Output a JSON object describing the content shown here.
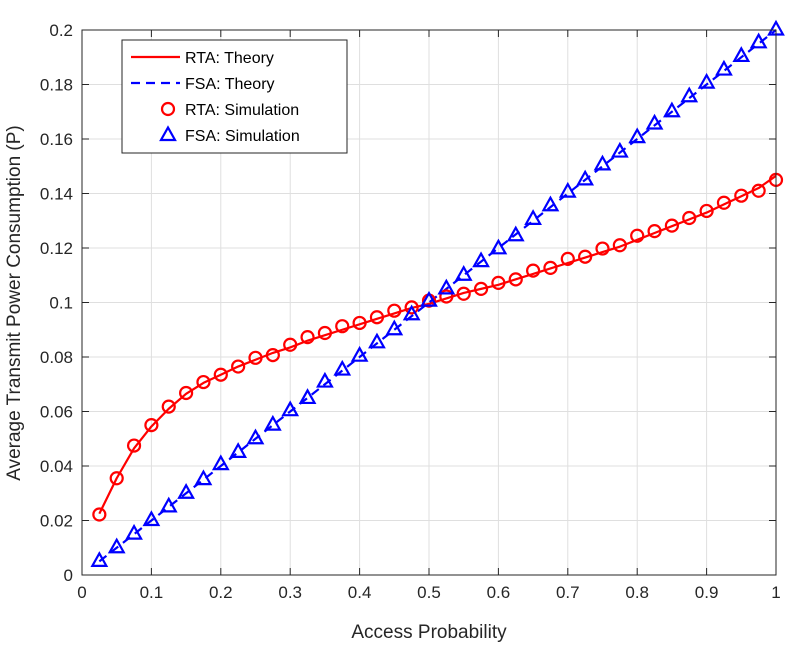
{
  "chart_data": {
    "type": "line",
    "title": "",
    "xlabel": "Access Probability",
    "ylabel": "Average Transmit Power Consumption (P)",
    "xlim": [
      0,
      1
    ],
    "ylim": [
      0,
      0.2
    ],
    "grid": true,
    "legend_position": "top-left",
    "x_ticks": [
      "0",
      "0.1",
      "0.2",
      "0.3",
      "0.4",
      "0.5",
      "0.6",
      "0.7",
      "0.8",
      "0.9",
      "1"
    ],
    "y_ticks": [
      "0",
      "0.02",
      "0.04",
      "0.06",
      "0.08",
      "0.1",
      "0.12",
      "0.14",
      "0.16",
      "0.18",
      "0.2"
    ],
    "x": [
      0.025,
      0.05,
      0.075,
      0.1,
      0.125,
      0.15,
      0.175,
      0.2,
      0.225,
      0.25,
      0.275,
      0.3,
      0.325,
      0.35,
      0.375,
      0.4,
      0.425,
      0.45,
      0.475,
      0.5,
      0.525,
      0.55,
      0.575,
      0.6,
      0.625,
      0.65,
      0.675,
      0.7,
      0.725,
      0.75,
      0.775,
      0.8,
      0.825,
      0.85,
      0.875,
      0.9,
      0.925,
      0.95,
      0.975,
      1.0
    ],
    "series": [
      {
        "name": "RTA: Theory",
        "style": "solid-line",
        "color": "#ff0000",
        "values": [
          0.0225,
          0.0355,
          0.0465,
          0.0545,
          0.061,
          0.0665,
          0.0705,
          0.0735,
          0.0765,
          0.079,
          0.0815,
          0.0835,
          0.086,
          0.088,
          0.09,
          0.092,
          0.094,
          0.096,
          0.098,
          0.0995,
          0.1015,
          0.1035,
          0.105,
          0.1065,
          0.1085,
          0.1105,
          0.1125,
          0.1145,
          0.1165,
          0.1185,
          0.1205,
          0.123,
          0.1255,
          0.128,
          0.1305,
          0.133,
          0.136,
          0.139,
          0.142,
          0.1465
        ]
      },
      {
        "name": "FSA: Theory",
        "style": "dashed-line",
        "color": "#0000ff",
        "values": [
          0.005,
          0.01,
          0.015,
          0.02,
          0.025,
          0.03,
          0.035,
          0.04,
          0.045,
          0.05,
          0.055,
          0.06,
          0.065,
          0.07,
          0.075,
          0.08,
          0.085,
          0.09,
          0.095,
          0.1,
          0.105,
          0.11,
          0.115,
          0.12,
          0.125,
          0.13,
          0.135,
          0.14,
          0.145,
          0.15,
          0.155,
          0.16,
          0.165,
          0.17,
          0.175,
          0.18,
          0.185,
          0.19,
          0.195,
          0.2
        ]
      },
      {
        "name": "RTA: Simulation",
        "style": "circle-marker",
        "color": "#ff0000",
        "values": [
          0.0222,
          0.0355,
          0.0475,
          0.055,
          0.0618,
          0.0668,
          0.0708,
          0.0735,
          0.0765,
          0.0797,
          0.0807,
          0.0845,
          0.0873,
          0.0888,
          0.0913,
          0.0925,
          0.0946,
          0.097,
          0.0982,
          0.1007,
          0.1022,
          0.1032,
          0.105,
          0.1072,
          0.1085,
          0.1117,
          0.1127,
          0.116,
          0.1168,
          0.1198,
          0.121,
          0.1245,
          0.1262,
          0.1282,
          0.131,
          0.1336,
          0.1366,
          0.1392,
          0.141,
          0.145
        ]
      },
      {
        "name": "FSA: Simulation",
        "style": "triangle-marker",
        "color": "#0000ff",
        "values": [
          0.005,
          0.01,
          0.015,
          0.02,
          0.025,
          0.03,
          0.035,
          0.0405,
          0.045,
          0.05,
          0.055,
          0.0603,
          0.0648,
          0.0708,
          0.0752,
          0.0803,
          0.0852,
          0.09,
          0.0955,
          0.1005,
          0.105,
          0.11,
          0.115,
          0.1197,
          0.1245,
          0.1305,
          0.1355,
          0.1405,
          0.145,
          0.1505,
          0.1552,
          0.1605,
          0.1655,
          0.17,
          0.1755,
          0.1805,
          0.1853,
          0.1903,
          0.1953,
          0.2
        ]
      }
    ]
  }
}
